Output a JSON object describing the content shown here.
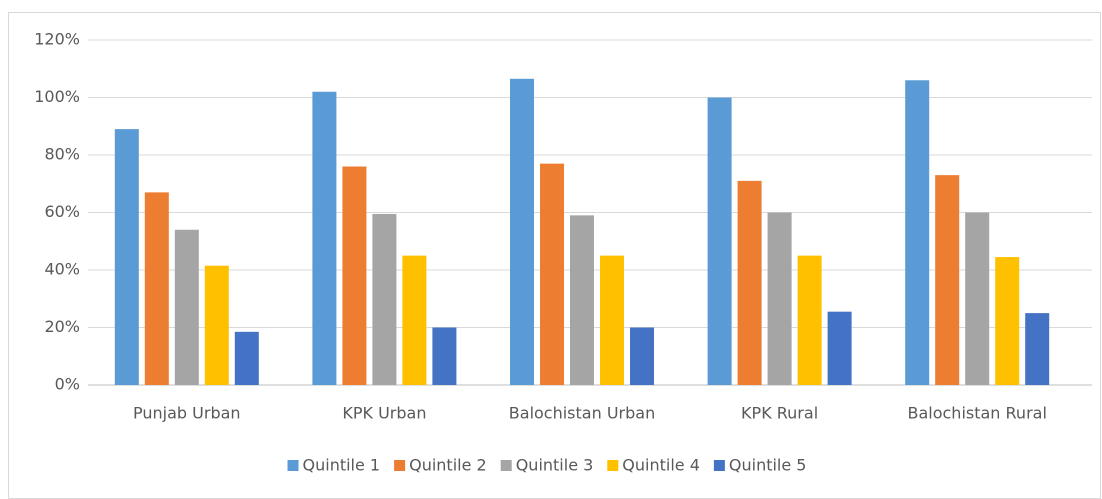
{
  "chart_data": {
    "type": "bar",
    "categories": [
      "Punjab Urban",
      "KPK Urban",
      "Balochistan Urban",
      "KPK Rural",
      "Balochistan Rural"
    ],
    "series": [
      {
        "name": "Quintile 1",
        "color": "#5b9bd5",
        "values": [
          89,
          102,
          106.5,
          100,
          106
        ]
      },
      {
        "name": "Quintile 2",
        "color": "#ed7d31",
        "values": [
          67,
          76,
          77,
          71,
          73
        ]
      },
      {
        "name": "Quintile 3",
        "color": "#a5a5a5",
        "values": [
          54,
          59.5,
          59,
          60,
          60
        ]
      },
      {
        "name": "Quintile 4",
        "color": "#ffc000",
        "values": [
          41.5,
          45,
          45,
          45,
          44.5
        ]
      },
      {
        "name": "Quintile 5",
        "color": "#4472c4",
        "values": [
          18.5,
          20,
          20,
          25.5,
          25
        ]
      }
    ],
    "ylim": [
      0,
      120
    ],
    "yticks": [
      {
        "value": 0,
        "label": "0%"
      },
      {
        "value": 20,
        "label": "20%"
      },
      {
        "value": 40,
        "label": "40%"
      },
      {
        "value": 60,
        "label": "60%"
      },
      {
        "value": 80,
        "label": "80%"
      },
      {
        "value": 100,
        "label": "100%"
      },
      {
        "value": 120,
        "label": "120%"
      }
    ],
    "grid": true,
    "legend": "bottom"
  }
}
